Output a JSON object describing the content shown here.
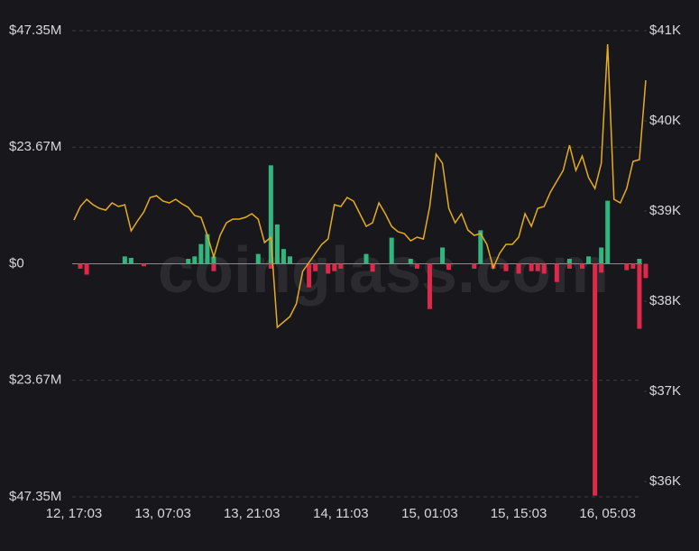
{
  "chart_data": {
    "type": "bar",
    "watermark": "coinglass.com",
    "categories": [
      "12, 17:03",
      null,
      null,
      null,
      null,
      null,
      null,
      null,
      null,
      null,
      null,
      null,
      null,
      null,
      "13, 07:03",
      null,
      null,
      null,
      null,
      null,
      null,
      null,
      null,
      null,
      null,
      null,
      null,
      null,
      "13, 21:03",
      null,
      null,
      null,
      null,
      null,
      null,
      null,
      null,
      null,
      null,
      null,
      null,
      null,
      "14, 11:03",
      null,
      null,
      null,
      null,
      null,
      null,
      null,
      null,
      null,
      null,
      null,
      null,
      null,
      "15, 01:03",
      null,
      null,
      null,
      null,
      null,
      null,
      null,
      null,
      null,
      null,
      null,
      null,
      null,
      "15, 15:03",
      null,
      null,
      null,
      null,
      null,
      null,
      null,
      null,
      null,
      null,
      null,
      null,
      null,
      "16, 05:03",
      null,
      null,
      null,
      null,
      null,
      null
    ],
    "ylim": [
      -47.35,
      47.35
    ],
    "yticks": [
      {
        "value": 47.35,
        "label": "$47.35M"
      },
      {
        "value": 23.67,
        "label": "$23.67M"
      },
      {
        "value": 0,
        "label": "$0"
      },
      {
        "value": -23.67,
        "label": "$23.67M"
      },
      {
        "value": -47.35,
        "label": "$47.35M"
      }
    ],
    "y2lim": [
      35830,
      41000
    ],
    "y2ticks": [
      {
        "value": 41000,
        "label": "$41K"
      },
      {
        "value": 40000,
        "label": "$40K"
      },
      {
        "value": 39000,
        "label": "$39K"
      },
      {
        "value": 38000,
        "label": "$38K"
      },
      {
        "value": 37000,
        "label": "$37K"
      },
      {
        "value": 36000,
        "label": "$36K"
      }
    ],
    "grid": true,
    "series": [
      {
        "color": "#31b67f",
        "values": [
          0,
          0,
          0,
          0,
          0,
          0,
          0,
          0,
          1.5,
          1.2,
          0,
          0,
          0,
          0,
          0,
          0,
          0,
          0,
          1,
          1.5,
          4,
          6,
          1.5,
          0,
          0,
          0,
          0,
          0,
          0,
          2,
          0,
          20,
          8,
          3,
          1.5,
          0,
          0,
          0,
          0,
          0,
          0,
          0,
          0,
          0,
          0,
          0,
          2,
          0,
          0,
          0,
          5.3,
          0,
          0,
          1,
          0,
          0,
          0,
          0,
          3.3,
          0,
          0,
          0,
          0,
          0,
          6.8,
          0,
          0,
          0,
          0,
          0,
          0,
          0,
          0,
          0,
          0,
          0,
          0,
          0,
          1,
          0,
          0,
          1.5,
          0,
          3.3,
          12.8,
          0,
          0,
          0,
          0,
          1,
          0
        ]
      },
      {
        "color": "#e0294a",
        "values": [
          0,
          -1,
          -2.2,
          0,
          0,
          0,
          0,
          0,
          0,
          0,
          0,
          -0.5,
          0,
          0,
          0,
          0,
          0,
          0,
          0,
          0,
          0,
          0,
          -1.5,
          0,
          0,
          0,
          0,
          0,
          0,
          0,
          0,
          -1,
          0,
          0,
          0,
          0,
          0,
          -4.8,
          -1.5,
          0,
          -2,
          -1.5,
          -1,
          0,
          0,
          0,
          0,
          -1.6,
          0,
          0,
          0,
          0,
          0,
          0,
          -1,
          0,
          -9.2,
          0,
          0,
          -1.2,
          0,
          0,
          0,
          -1,
          0,
          0,
          -1,
          0,
          -1.5,
          0,
          -2,
          0,
          -1.5,
          -1.5,
          -2,
          0,
          -3.7,
          0,
          -1,
          0,
          -1,
          0,
          -47.1,
          -1.8,
          0,
          0,
          0,
          -1.3,
          -1,
          -13.2,
          -2.9
        ]
      },
      {
        "type": "line",
        "axis": "y2",
        "color": "#e6ac1e",
        "values": [
          38900,
          39050,
          39130,
          39070,
          39030,
          39010,
          39090,
          39050,
          39070,
          38780,
          38890,
          38990,
          39150,
          39170,
          39110,
          39090,
          39130,
          39080,
          39040,
          38950,
          38930,
          38730,
          38490,
          38730,
          38870,
          38910,
          38910,
          38930,
          38970,
          38910,
          38650,
          38710,
          37710,
          37770,
          37830,
          37970,
          38330,
          38430,
          38530,
          38630,
          38690,
          39070,
          39050,
          39150,
          39110,
          38970,
          38830,
          38870,
          39090,
          38970,
          38830,
          38770,
          38750,
          38670,
          38710,
          38690,
          39050,
          39630,
          39530,
          39030,
          38870,
          38970,
          38790,
          38730,
          38750,
          38630,
          38370,
          38530,
          38630,
          38630,
          38710,
          38970,
          38830,
          39030,
          39050,
          39210,
          39330,
          39450,
          39730,
          39450,
          39610,
          39370,
          39250,
          39530,
          40850,
          39130,
          39090,
          39250,
          39550,
          39570,
          40450
        ]
      }
    ]
  }
}
